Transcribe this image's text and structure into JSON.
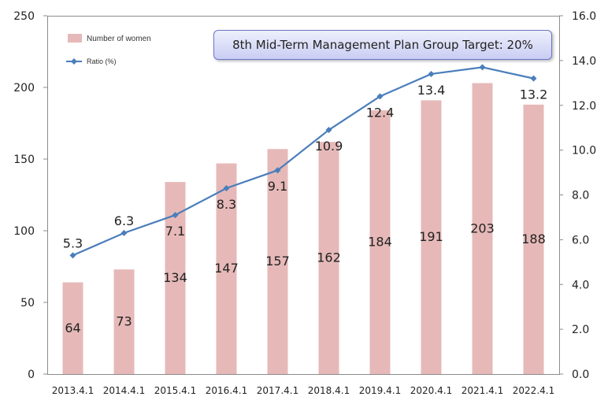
{
  "chart_data": {
    "type": "bar",
    "categories": [
      "2013.4.1",
      "2014.4.1",
      "2015.4.1",
      "2016.4.1",
      "2017.4.1",
      "2018.4.1",
      "2019.4.1",
      "2020.4.1",
      "2021.4.1",
      "2022.4.1"
    ],
    "series": [
      {
        "name": "Number of women",
        "type": "bar",
        "axis": "left",
        "color": "#e6b9b8",
        "values": [
          64,
          73,
          134,
          147,
          157,
          162,
          184,
          191,
          203,
          188
        ]
      },
      {
        "name": "Ratio (%)",
        "type": "line",
        "axis": "right",
        "color": "#4a7ebb",
        "values": [
          5.3,
          6.3,
          7.1,
          8.3,
          9.1,
          10.9,
          12.4,
          13.4,
          13.7,
          13.2
        ]
      }
    ],
    "y_left": {
      "min": 0,
      "max": 250,
      "ticks": [
        "0",
        "50",
        "100",
        "150",
        "200",
        "250"
      ]
    },
    "y_right": {
      "min": 0,
      "max": 16,
      "ticks": [
        "0.0",
        "2.0",
        "4.0",
        "6.0",
        "8.0",
        "10.0",
        "12.0",
        "14.0",
        "16.0"
      ]
    },
    "legend": {
      "position": "top-left"
    },
    "annotation": "8th Mid-Term Management Plan Group Target: 20%"
  }
}
